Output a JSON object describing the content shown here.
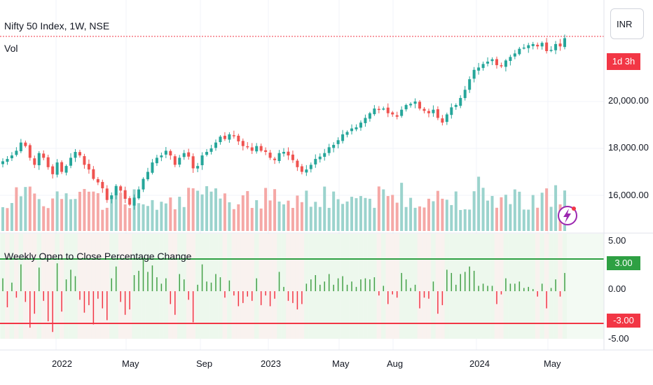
{
  "header": {
    "symbol_title": "Nifty 50 Index, 1W, NSE",
    "volume_label": "Vol",
    "indicator_title": "Weekly Open to Close Percentage Change"
  },
  "price_axis": {
    "currency": "INR",
    "countdown": "1d 3h",
    "ticks": [
      "20,000.00",
      "18,000.00",
      "16,000.00"
    ]
  },
  "indicator_axis": {
    "ticks": [
      "5.00",
      "0.00",
      "-5.00"
    ],
    "upper_level_label": "3.00",
    "lower_level_label": "-3.00",
    "upper_level": 3.0,
    "lower_level": -3.0
  },
  "time_axis": {
    "labels": [
      "2022",
      "May",
      "Sep",
      "2023",
      "May",
      "Aug",
      "2024",
      "May"
    ]
  },
  "colors": {
    "up": "#26a69a",
    "down": "#ef5350",
    "vol_up": "#9bd3cd",
    "vol_down": "#f5a8a6",
    "hist_up": "#43a047",
    "hist_down": "#f23645",
    "level_up": "#2ea043",
    "level_down": "#f23645",
    "countdown_bg": "#f23645",
    "bolt": "#9c27b0"
  },
  "chart_data": {
    "type": "candlestick",
    "title": "Nifty 50 Index, 1W, NSE",
    "ylim": [
      14600,
      22700
    ],
    "closes": [
      17450,
      17550,
      17700,
      17900,
      18250,
      18100,
      17600,
      17300,
      17800,
      17600,
      17200,
      16900,
      17400,
      17000,
      17250,
      17600,
      17850,
      17700,
      17300,
      17100,
      16700,
      16550,
      16300,
      15800,
      16000,
      16400,
      16200,
      15850,
      15600,
      15900,
      16250,
      16700,
      17000,
      17400,
      17600,
      17700,
      17900,
      17700,
      17300,
      17600,
      17800,
      17650,
      17150,
      17250,
      17700,
      17850,
      18000,
      18250,
      18500,
      18400,
      18600,
      18550,
      18300,
      18100,
      18050,
      17900,
      18100,
      17900,
      17850,
      17600,
      17500,
      17800,
      17850,
      17700,
      17500,
      17200,
      17000,
      17100,
      17300,
      17550,
      17650,
      17800,
      18050,
      18150,
      18350,
      18600,
      18700,
      18850,
      18900,
      19100,
      19300,
      19500,
      19700,
      19650,
      19700,
      19500,
      19450,
      19350,
      19650,
      19850,
      19900,
      20000,
      19700,
      19600,
      19500,
      19650,
      19300,
      19100,
      19450,
      19750,
      19850,
      20150,
      20500,
      20950,
      21350,
      21450,
      21600,
      21700,
      21800,
      21550,
      21500,
      21750,
      21900,
      22050,
      22250,
      22300,
      22400,
      22450,
      22350,
      22500,
      22150,
      22200,
      22450,
      22350,
      22700
    ],
    "volume_up": [
      true,
      false,
      true,
      false,
      true,
      true,
      false,
      false,
      true,
      false,
      false,
      false,
      true,
      false,
      true,
      true,
      true,
      false,
      false,
      false,
      false,
      false,
      false,
      false,
      true,
      true,
      false,
      false,
      false,
      true,
      true,
      true,
      true,
      true,
      true,
      true,
      true,
      false,
      false,
      true,
      true,
      false,
      false,
      true,
      true,
      true,
      true,
      true,
      true,
      false,
      true,
      false,
      false,
      false,
      false,
      false,
      true,
      false,
      false,
      false,
      false,
      true,
      true,
      false,
      false,
      false,
      false,
      true,
      true,
      true,
      true,
      true,
      true,
      true,
      true,
      true,
      true,
      true,
      true,
      true,
      true,
      true,
      true,
      false,
      true,
      false,
      false,
      false,
      true,
      true,
      true,
      true,
      false,
      false,
      false,
      true,
      false,
      false,
      true,
      true,
      true,
      true,
      true,
      true,
      true,
      true,
      true,
      true,
      true,
      false,
      false,
      true,
      true,
      true,
      true,
      true,
      true,
      true,
      false,
      true,
      false,
      true,
      true,
      false,
      true
    ],
    "weekly_pct_change": [
      1.2,
      -1.5,
      0.8,
      -0.6,
      2.5,
      -1.0,
      -3.4,
      -2.1,
      2.2,
      -0.9,
      -2.8,
      -3.8,
      2.6,
      -1.9,
      1.1,
      2.0,
      1.4,
      -0.8,
      -2.0,
      -1.3,
      -3.1,
      -0.7,
      -1.6,
      -2.7,
      1.2,
      2.3,
      -1.0,
      -2.2,
      -1.7,
      1.5,
      1.9,
      3.1,
      1.8,
      2.4,
      1.3,
      0.7,
      1.2,
      -1.2,
      -2.2,
      1.6,
      1.1,
      -0.8,
      -2.9,
      0.6,
      2.5,
      0.9,
      0.8,
      1.6,
      1.3,
      -0.6,
      1.0,
      -0.4,
      -1.4,
      -1.1,
      -0.5,
      -0.9,
      1.2,
      -1.3,
      -0.4,
      -1.4,
      -0.7,
      1.8,
      0.4,
      -0.9,
      -1.1,
      -1.7,
      -1.2,
      0.7,
      1.1,
      1.5,
      0.6,
      0.9,
      1.6,
      0.6,
      1.2,
      1.4,
      0.6,
      0.9,
      0.4,
      1.1,
      1.2,
      1.1,
      1.3,
      -0.4,
      0.5,
      -1.2,
      -0.3,
      -0.6,
      1.7,
      1.1,
      0.3,
      0.6,
      -1.6,
      -0.6,
      -0.7,
      0.9,
      -2.1,
      -1.3,
      2.0,
      1.7,
      0.6,
      1.6,
      1.8,
      2.3,
      1.9,
      0.5,
      0.7,
      0.5,
      0.5,
      -1.2,
      -0.3,
      1.2,
      0.7,
      0.7,
      0.9,
      0.3,
      0.4,
      0.2,
      -0.5,
      0.7,
      -1.6,
      0.3,
      1.1,
      -0.5,
      1.7
    ],
    "series": [
      {
        "name": "Price",
        "pane": "main"
      },
      {
        "name": "Vol",
        "pane": "main"
      },
      {
        "name": "Weekly Open to Close Percentage Change",
        "pane": "indicator"
      }
    ]
  }
}
